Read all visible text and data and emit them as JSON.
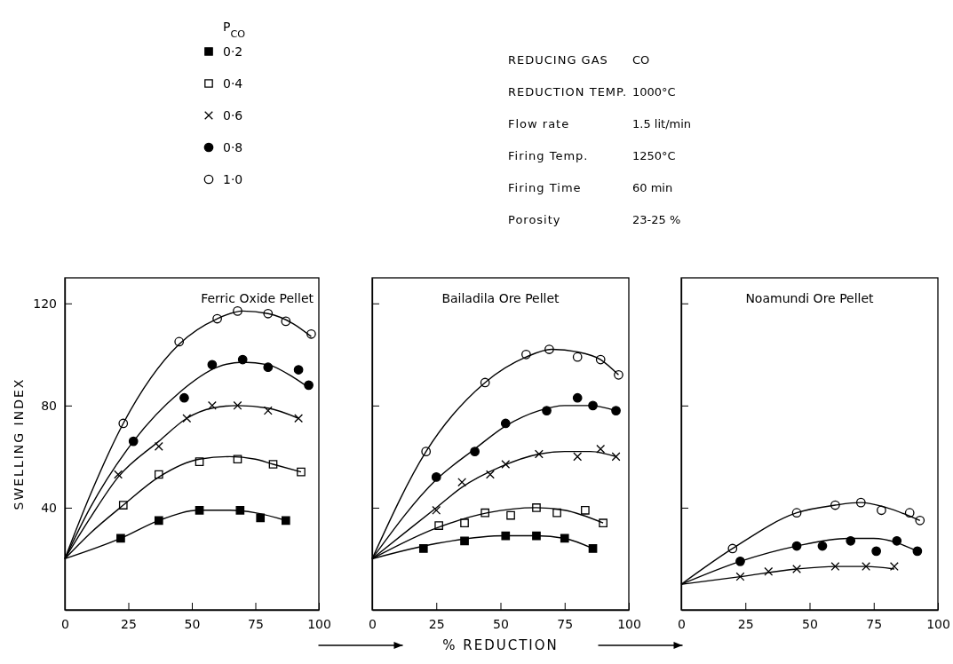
{
  "chart_data": [
    {
      "type": "scatter",
      "title": "Ferric Oxide Pellet",
      "ylabel": "SWELLING INDEX",
      "legend_title": "P$_{CO}$",
      "legend": "top",
      "annotations": [
        "REDUCING GAS",
        "CO",
        "REDUCTION TEMP.",
        "1000°C",
        "Flow rate",
        "1.5 lit/min",
        "Firing Temp.",
        "1250°C",
        "Firing Time",
        "60 min",
        "Porosity",
        "23-25 %"
      ],
      "xlim": [
        0,
        100
      ],
      "xticks": [
        0,
        25,
        50,
        75,
        100
      ],
      "ylim": [
        0,
        130
      ],
      "yticks": [
        40,
        80,
        120
      ],
      "grid": false,
      "series": [
        {
          "name": "0·2",
          "marker": "square",
          "color": "#000000",
          "x": [
            22,
            37,
            53,
            69,
            77,
            87
          ],
          "values": [
            28,
            35,
            39,
            39,
            36,
            35
          ]
        },
        {
          "name": "0·4",
          "marker": "square",
          "color": "#ffffff",
          "x": [
            23,
            37,
            53,
            68,
            82,
            93
          ],
          "values": [
            41,
            53,
            58,
            59,
            57,
            54
          ]
        },
        {
          "name": "0·6",
          "marker": "cross",
          "color": "#000000",
          "x": [
            21,
            37,
            48,
            58,
            68,
            80,
            92
          ],
          "values": [
            53,
            64,
            75,
            80,
            80,
            78,
            75
          ]
        },
        {
          "name": "0·8",
          "marker": "circle",
          "color": "#000000",
          "x": [
            27,
            47,
            58,
            70,
            80,
            92,
            96
          ],
          "values": [
            66,
            83,
            96,
            98,
            95,
            94,
            88
          ]
        },
        {
          "name": "1·0",
          "marker": "circle",
          "color": "#ffffff",
          "x": [
            23,
            45,
            60,
            68,
            80,
            87,
            97
          ],
          "values": [
            73,
            105,
            114,
            117,
            116,
            113,
            108
          ]
        },
        {
          "type": "line",
          "marker": "none",
          "color": "#000000",
          "x": [
            0,
            22,
            37,
            53,
            65,
            75,
            87
          ],
          "values": [
            20,
            28,
            35,
            39,
            39,
            38,
            35
          ]
        },
        {
          "type": "line",
          "marker": "none",
          "color": "#000000",
          "x": [
            0,
            10,
            23,
            37,
            53,
            65,
            75,
            82,
            93
          ],
          "values": [
            20,
            30,
            41,
            52,
            59,
            60,
            59,
            57,
            54
          ]
        },
        {
          "type": "line",
          "marker": "none",
          "color": "#000000",
          "x": [
            0,
            10,
            21,
            37,
            48,
            58,
            68,
            80,
            92
          ],
          "values": [
            20,
            36,
            52,
            66,
            75,
            79,
            80,
            79,
            75
          ]
        },
        {
          "type": "line",
          "marker": "none",
          "color": "#000000",
          "x": [
            0,
            10,
            27,
            45,
            60,
            70,
            80,
            90,
            96
          ],
          "values": [
            20,
            40,
            66,
            85,
            95,
            97,
            96,
            91,
            87
          ]
        },
        {
          "type": "line",
          "marker": "none",
          "color": "#000000",
          "x": [
            0,
            10,
            23,
            45,
            60,
            70,
            80,
            90,
            97
          ],
          "values": [
            20,
            45,
            73,
            104,
            114,
            117,
            116,
            112,
            107
          ]
        }
      ]
    },
    {
      "type": "scatter",
      "title": "Bailadila Ore Pellet",
      "xlabel": "% REDUCTION",
      "tick_labels": "x",
      "xlim": [
        0,
        100
      ],
      "xticks": [
        0,
        25,
        50,
        75,
        100
      ],
      "ylim": [
        0,
        130
      ],
      "yticks": [
        40,
        80,
        120
      ],
      "grid": false,
      "series": [
        {
          "marker": "square",
          "color": "#000000",
          "x": [
            20,
            36,
            52,
            64,
            75,
            86
          ],
          "values": [
            24,
            27,
            29,
            29,
            28,
            24
          ]
        },
        {
          "marker": "square",
          "color": "#ffffff",
          "x": [
            26,
            36,
            44,
            54,
            64,
            72,
            83,
            90
          ],
          "values": [
            33,
            34,
            38,
            37,
            40,
            38,
            39,
            34
          ]
        },
        {
          "marker": "cross",
          "color": "#000000",
          "x": [
            25,
            35,
            46,
            52,
            65,
            80,
            89,
            95
          ],
          "values": [
            39,
            50,
            53,
            57,
            61,
            60,
            63,
            60
          ]
        },
        {
          "marker": "circle",
          "color": "#000000",
          "x": [
            25,
            40,
            52,
            68,
            80,
            86,
            95
          ],
          "values": [
            52,
            62,
            73,
            78,
            83,
            80,
            78
          ]
        },
        {
          "marker": "circle",
          "color": "#ffffff",
          "x": [
            21,
            44,
            60,
            69,
            80,
            89,
            96
          ],
          "values": [
            62,
            89,
            100,
            102,
            99,
            98,
            92
          ]
        },
        {
          "type": "line",
          "marker": "none",
          "color": "#000000",
          "x": [
            0,
            25,
            52,
            64,
            75,
            86
          ],
          "values": [
            20,
            26,
            29,
            29,
            28,
            24
          ]
        },
        {
          "type": "line",
          "marker": "none",
          "color": "#000000",
          "x": [
            0,
            25,
            45,
            64,
            75,
            90
          ],
          "values": [
            20,
            32,
            38,
            40,
            39,
            34
          ]
        },
        {
          "type": "line",
          "marker": "none",
          "color": "#000000",
          "x": [
            0,
            25,
            35,
            50,
            65,
            75,
            85,
            95
          ],
          "values": [
            20,
            40,
            48,
            56,
            61,
            62,
            62,
            60
          ]
        },
        {
          "type": "line",
          "marker": "none",
          "color": "#000000",
          "x": [
            0,
            25,
            40,
            52,
            65,
            75,
            85,
            95
          ],
          "values": [
            20,
            51,
            63,
            72,
            78,
            80,
            80,
            78
          ]
        },
        {
          "type": "line",
          "marker": "none",
          "color": "#000000",
          "x": [
            0,
            21,
            44,
            60,
            70,
            80,
            89,
            96
          ],
          "values": [
            20,
            62,
            89,
            99,
            102,
            101,
            98,
            92
          ]
        }
      ]
    },
    {
      "type": "scatter",
      "title": "Noamundi Ore Pellet",
      "tick_labels": "x",
      "xlim": [
        0,
        100
      ],
      "xticks": [
        0,
        25,
        50,
        75,
        100
      ],
      "ylim": [
        0,
        130
      ],
      "yticks": [
        40,
        80,
        120
      ],
      "grid": false,
      "series": [
        {
          "marker": "cross",
          "color": "#000000",
          "x": [
            23,
            34,
            45,
            60,
            72,
            83
          ],
          "values": [
            13,
            15,
            16,
            17,
            17,
            17
          ]
        },
        {
          "marker": "circle",
          "color": "#000000",
          "x": [
            23,
            45,
            55,
            66,
            76,
            84,
            92
          ],
          "values": [
            19,
            25,
            25,
            27,
            23,
            27,
            23
          ]
        },
        {
          "marker": "circle",
          "color": "#ffffff",
          "x": [
            20,
            45,
            60,
            70,
            78,
            89,
            93
          ],
          "values": [
            24,
            38,
            41,
            42,
            39,
            38,
            35
          ]
        },
        {
          "type": "line",
          "marker": "none",
          "color": "#000000",
          "x": [
            0,
            23,
            45,
            60,
            72,
            83
          ],
          "values": [
            10,
            13,
            16,
            17,
            17,
            16
          ]
        },
        {
          "type": "line",
          "marker": "none",
          "color": "#000000",
          "x": [
            0,
            23,
            45,
            65,
            75,
            92
          ],
          "values": [
            10,
            19,
            25,
            28,
            28,
            23
          ]
        },
        {
          "type": "line",
          "marker": "none",
          "color": "#000000",
          "x": [
            0,
            20,
            45,
            60,
            70,
            80,
            93
          ],
          "values": [
            10,
            24,
            38,
            41,
            42,
            40,
            35
          ]
        }
      ]
    }
  ]
}
